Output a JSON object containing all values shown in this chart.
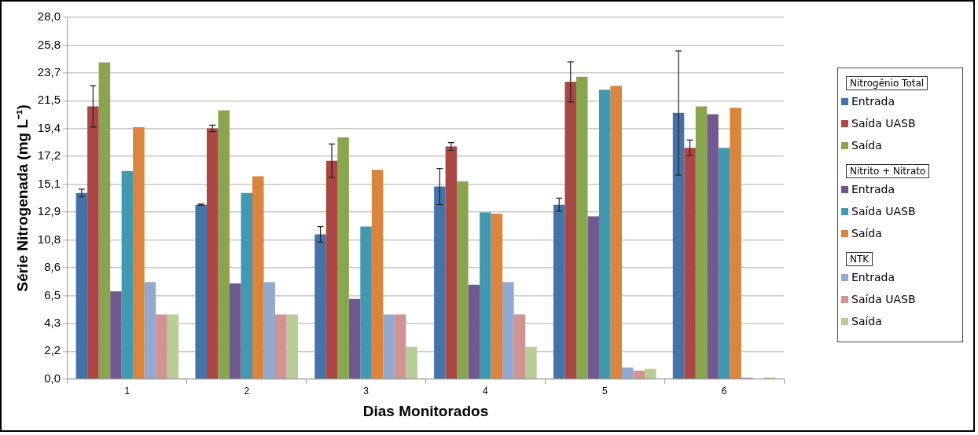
{
  "chart_data": {
    "type": "bar",
    "xlabel": "Dias Monitorados",
    "ylabel": "Série Nitrogenada (mg L⁻¹)",
    "categories": [
      "1",
      "2",
      "3",
      "4",
      "5",
      "6"
    ],
    "ylim": [
      0,
      28
    ],
    "yticks": [
      {
        "value": 0,
        "label": "0,0"
      },
      {
        "value": 2.154,
        "label": "2,2"
      },
      {
        "value": 4.308,
        "label": "4,3"
      },
      {
        "value": 6.462,
        "label": "6,5"
      },
      {
        "value": 8.615,
        "label": "8,6"
      },
      {
        "value": 10.769,
        "label": "10,8"
      },
      {
        "value": 12.923,
        "label": "12,9"
      },
      {
        "value": 15.077,
        "label": "15,1"
      },
      {
        "value": 17.231,
        "label": "17,2"
      },
      {
        "value": 19.385,
        "label": "19,4"
      },
      {
        "value": 21.538,
        "label": "21,5"
      },
      {
        "value": 23.692,
        "label": "23,7"
      },
      {
        "value": 25.846,
        "label": "25,8"
      },
      {
        "value": 28,
        "label": "28,0"
      }
    ],
    "grid": "y",
    "legend": "right",
    "annotations": [
      "Nitrogênio Total",
      "Nitrito + Nitrato",
      "NTK"
    ],
    "series": [
      {
        "name": "Entrada",
        "color": "#4572a7",
        "values": [
          14.4,
          13.5,
          11.2,
          14.9,
          13.5,
          20.6
        ],
        "errors": [
          0.3,
          0.05,
          0.6,
          1.4,
          0.5,
          4.8
        ]
      },
      {
        "name": "Saída UASB",
        "color": "#aa4643",
        "values": [
          21.1,
          19.4,
          16.9,
          18.0,
          23.0,
          17.9
        ],
        "errors": [
          1.6,
          0.25,
          1.3,
          0.3,
          1.55,
          0.6
        ]
      },
      {
        "name": "Saída",
        "color": "#89a54e",
        "values": [
          24.5,
          20.8,
          18.7,
          15.3,
          23.4,
          21.1
        ]
      },
      {
        "name": "Entrada",
        "color": "#71588f",
        "values": [
          6.8,
          7.4,
          6.2,
          7.3,
          12.6,
          20.5
        ]
      },
      {
        "name": "Saída UASB",
        "color": "#4198af",
        "values": [
          16.1,
          14.4,
          11.8,
          12.9,
          22.4,
          17.9
        ]
      },
      {
        "name": "Saída",
        "color": "#db843d",
        "values": [
          19.5,
          15.7,
          16.2,
          12.8,
          22.7,
          21.0
        ]
      },
      {
        "name": "Entrada",
        "color": "#93a9cf",
        "values": [
          7.5,
          7.5,
          5.0,
          7.5,
          0.9,
          0.13
        ]
      },
      {
        "name": "Saída UASB",
        "color": "#d19392",
        "values": [
          5.0,
          5.0,
          5.0,
          5.0,
          0.65,
          0
        ]
      },
      {
        "name": "Saída",
        "color": "#b9cd96",
        "values": [
          5.0,
          5.0,
          2.5,
          2.5,
          0.8,
          0.13
        ]
      }
    ]
  }
}
